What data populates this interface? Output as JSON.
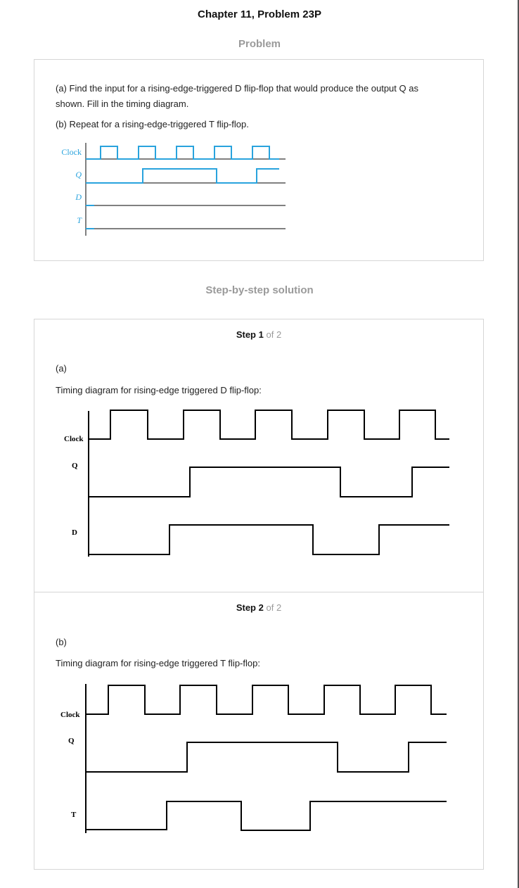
{
  "header": {
    "title": "Chapter 11, Problem 23P",
    "problem_label": "Problem",
    "solution_label": "Step-by-step solution"
  },
  "problem": {
    "part_a_line1": "(a) Find the input for a rising-edge-triggered D flip-flop that would produce the output Q as",
    "part_a_line2": "shown. Fill in the timing diagram.",
    "part_b": "(b) Repeat for a rising-edge-triggered T flip-flop.",
    "diagram_labels": {
      "clock": "Clock",
      "q": "Q",
      "d": "D",
      "t": "T"
    }
  },
  "steps": [
    {
      "step_word": "Step",
      "number": "1",
      "of_text": "of 2",
      "part": "(a)",
      "caption": "Timing diagram for rising-edge triggered D flip-flop:",
      "labels": {
        "clock": "Clock",
        "q": "Q",
        "d": "D"
      }
    },
    {
      "step_word": "Step",
      "number": "2",
      "of_text": "of 2",
      "part": "(b)",
      "caption": "Timing diagram for rising-edge triggered T flip-flop:",
      "labels": {
        "clock": "Clock",
        "q": "Q",
        "t": "T"
      }
    }
  ],
  "colors": {
    "problem_wave": "#29a3dd",
    "solution_wave": "#000000",
    "muted_text": "#9a9a9a"
  }
}
